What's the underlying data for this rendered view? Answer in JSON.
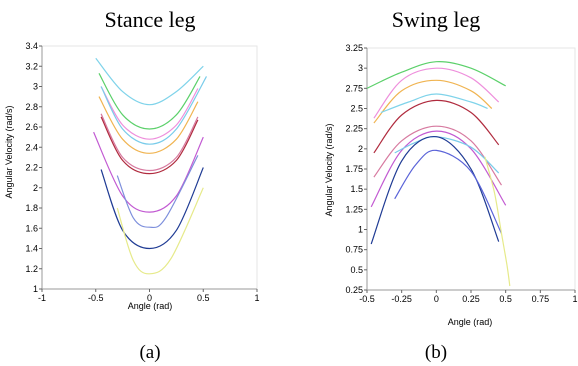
{
  "chart_data": [
    {
      "type": "line",
      "title": "Stance leg",
      "caption": "(a)",
      "xlabel": "Angle (rad)",
      "ylabel": "Angular Velocity (rad/s)",
      "xlim": [
        -1,
        1
      ],
      "ylim": [
        1,
        3.4
      ],
      "xticks": [
        "-1",
        "-0.5",
        "0",
        "0.5",
        "1"
      ],
      "yticks": [
        "1",
        "1.2",
        "1.4",
        "1.6",
        "1.8",
        "2",
        "2.2",
        "2.4",
        "2.6",
        "2.8",
        "3",
        "3.2",
        "3.4"
      ],
      "grid": false,
      "series": [
        {
          "color": "#7fd3ea",
          "x": [
            -0.5,
            -0.25,
            0,
            0.25,
            0.5
          ],
          "y": [
            3.28,
            2.95,
            2.82,
            2.95,
            3.2
          ]
        },
        {
          "color": "#5bd06a",
          "x": [
            -0.47,
            -0.25,
            0,
            0.25,
            0.47
          ],
          "y": [
            3.13,
            2.72,
            2.58,
            2.72,
            3.1
          ]
        },
        {
          "color": "#ee8fdc",
          "x": [
            -0.45,
            -0.25,
            0,
            0.25,
            0.45
          ],
          "y": [
            3.0,
            2.62,
            2.48,
            2.62,
            2.98
          ]
        },
        {
          "color": "#79ccea",
          "x": [
            -0.45,
            -0.25,
            0,
            0.25,
            0.53
          ],
          "y": [
            3.0,
            2.58,
            2.43,
            2.58,
            3.1
          ]
        },
        {
          "color": "#f0b451",
          "x": [
            -0.47,
            -0.25,
            0,
            0.25,
            0.45
          ],
          "y": [
            2.9,
            2.48,
            2.34,
            2.48,
            2.85
          ]
        },
        {
          "color": "#d77aa0",
          "x": [
            -0.45,
            -0.25,
            0,
            0.25,
            0.45
          ],
          "y": [
            2.73,
            2.3,
            2.17,
            2.3,
            2.7
          ]
        },
        {
          "color": "#b02b3e",
          "x": [
            -0.45,
            -0.25,
            0,
            0.25,
            0.45
          ],
          "y": [
            2.7,
            2.27,
            2.14,
            2.27,
            2.67
          ]
        },
        {
          "color": "#c25ad2",
          "x": [
            -0.52,
            -0.25,
            0,
            0.25,
            0.5
          ],
          "y": [
            2.55,
            1.92,
            1.76,
            1.92,
            2.5
          ]
        },
        {
          "color": "#7d8fdc",
          "x": [
            -0.3,
            -0.15,
            0,
            0.15,
            0.45
          ],
          "y": [
            2.12,
            1.7,
            1.61,
            1.7,
            2.32
          ]
        },
        {
          "color": "#1f3b94",
          "x": [
            -0.45,
            -0.25,
            0,
            0.25,
            0.5
          ],
          "y": [
            2.18,
            1.58,
            1.4,
            1.58,
            2.2
          ]
        },
        {
          "color": "#e6ea8a",
          "x": [
            -0.3,
            -0.15,
            0,
            0.2,
            0.5
          ],
          "y": [
            1.8,
            1.28,
            1.15,
            1.3,
            2.0
          ]
        }
      ]
    },
    {
      "type": "line",
      "title": "Swing leg",
      "caption": "(b)",
      "xlabel": "Angle (rad)",
      "ylabel": "Angular Velocity (rad/s)",
      "xlim": [
        -0.5,
        1
      ],
      "ylim": [
        0.25,
        3.25
      ],
      "xticks": [
        "-0.5",
        "-0.25",
        "0",
        "0.25",
        "0.5",
        "0.75",
        "1"
      ],
      "yticks": [
        "0.25",
        "0.5",
        "0.75",
        "1",
        "1.25",
        "1.5",
        "1.75",
        "2",
        "2.25",
        "2.5",
        "2.75",
        "3",
        "3.25"
      ],
      "grid": false,
      "series": [
        {
          "color": "#5bd06a",
          "x": [
            -0.5,
            -0.25,
            0,
            0.25,
            0.5
          ],
          "y": [
            2.75,
            2.95,
            3.08,
            3.0,
            2.78
          ]
        },
        {
          "color": "#ee8fdc",
          "x": [
            -0.45,
            -0.25,
            0,
            0.25,
            0.45
          ],
          "y": [
            2.38,
            2.85,
            3.0,
            2.88,
            2.58
          ]
        },
        {
          "color": "#f0b451",
          "x": [
            -0.45,
            -0.25,
            0,
            0.25,
            0.4
          ],
          "y": [
            2.32,
            2.72,
            2.85,
            2.72,
            2.5
          ]
        },
        {
          "color": "#7fd3ea",
          "x": [
            -0.4,
            -0.2,
            0,
            0.25,
            0.37
          ],
          "y": [
            2.45,
            2.58,
            2.68,
            2.58,
            2.5
          ]
        },
        {
          "color": "#b02b3e",
          "x": [
            -0.45,
            -0.25,
            0,
            0.25,
            0.45
          ],
          "y": [
            1.95,
            2.42,
            2.6,
            2.45,
            2.05
          ]
        },
        {
          "color": "#d77aa0",
          "x": [
            -0.45,
            -0.25,
            0,
            0.25,
            0.47
          ],
          "y": [
            1.65,
            2.1,
            2.28,
            2.1,
            1.55
          ]
        },
        {
          "color": "#c25ad2",
          "x": [
            -0.47,
            -0.25,
            0,
            0.25,
            0.5
          ],
          "y": [
            1.28,
            1.98,
            2.22,
            2.0,
            1.3
          ]
        },
        {
          "color": "#79ccea",
          "x": [
            -0.3,
            -0.15,
            0,
            0.25,
            0.45
          ],
          "y": [
            1.95,
            2.08,
            2.15,
            2.02,
            1.7
          ]
        },
        {
          "color": "#1f3b94",
          "x": [
            -0.47,
            -0.25,
            0,
            0.25,
            0.45
          ],
          "y": [
            0.82,
            1.85,
            2.15,
            1.75,
            0.85
          ]
        },
        {
          "color": "#5a63d8",
          "x": [
            -0.3,
            -0.15,
            0,
            0.25,
            0.47
          ],
          "y": [
            1.38,
            1.8,
            1.98,
            1.72,
            0.95
          ]
        },
        {
          "color": "#e6ea8a",
          "x": [
            0.35,
            0.42,
            0.47,
            0.51,
            0.53
          ],
          "y": [
            1.9,
            1.45,
            0.95,
            0.55,
            0.3
          ]
        }
      ]
    }
  ]
}
